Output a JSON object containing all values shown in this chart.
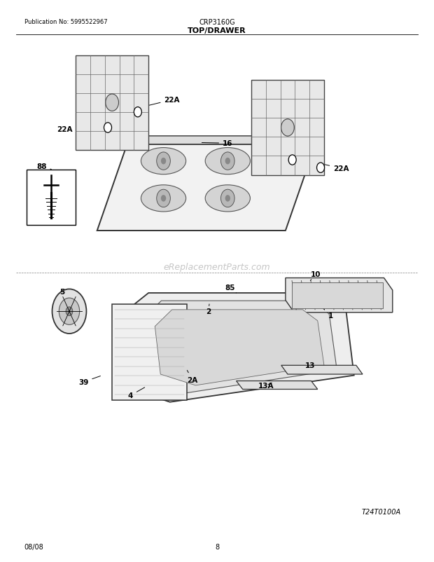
{
  "title_left": "Publication No: 5995522967",
  "title_center": "CRP3160G",
  "subtitle": "TOP/DRAWER",
  "footer_left": "08/08",
  "footer_center": "8",
  "footer_right": "T24T0100A",
  "watermark": "eReplacementParts.com",
  "bg_color": "#ffffff",
  "fig_width": 6.2,
  "fig_height": 8.03,
  "dpi": 100
}
